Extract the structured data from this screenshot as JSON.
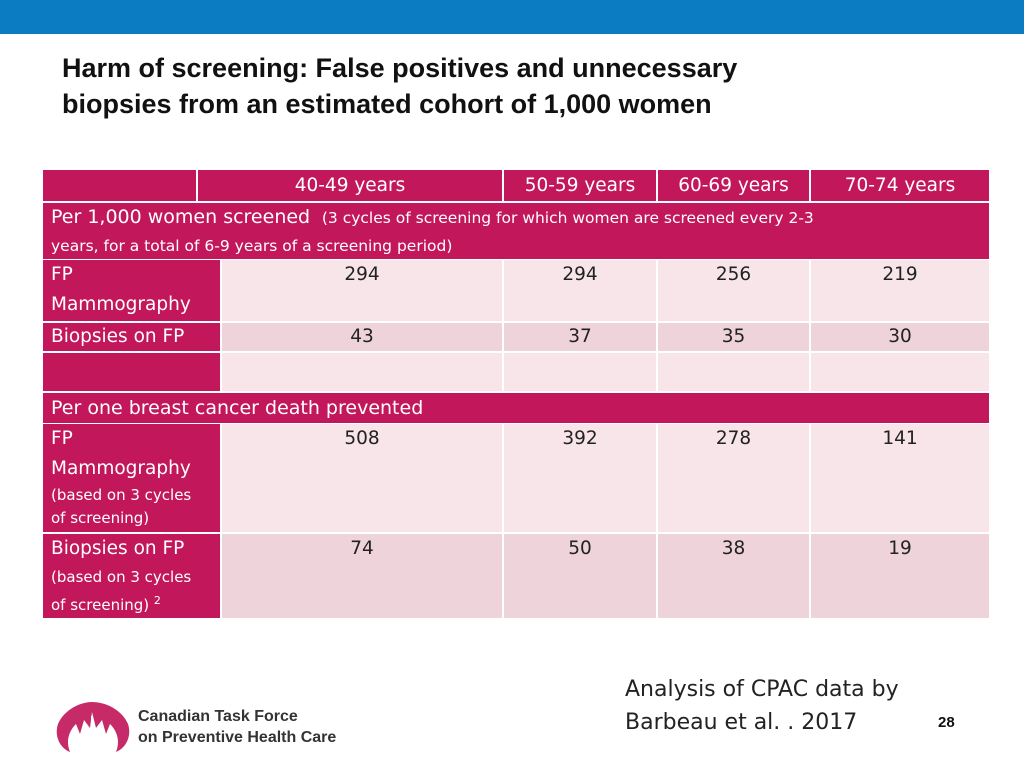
{
  "title": {
    "line1": "Harm of screening: False positives and unnecessary",
    "line2": "biopsies from an estimated cohort of 1,000 women"
  },
  "table": {
    "headers": [
      "",
      "40-49 years",
      "50-59 years",
      "60-69 years",
      "70-74 years"
    ],
    "section1": {
      "bold": "Per 1,000 women screened",
      "note_line1": "(3 cycles of screening for which women are screened every 2-3",
      "note_line2": "years, for a total of 6-9 years of a screening period)"
    },
    "section1_rows": [
      {
        "label_line1": "FP",
        "label_line2": "Mammography",
        "values": [
          "294",
          "294",
          "256",
          "219"
        ]
      },
      {
        "label_line1": "Biopsies on FP",
        "values": [
          "43",
          "37",
          "35",
          "30"
        ]
      }
    ],
    "section2": {
      "label": "Per one breast cancer death prevented"
    },
    "section2_rows": [
      {
        "label_line1": "FP",
        "label_line2": "Mammography",
        "note_line1": "(based on 3 cycles",
        "note_line2": "of screening)",
        "values": [
          "508",
          "392",
          "278",
          "141"
        ]
      },
      {
        "label_line1": "Biopsies on FP",
        "note_line1": "(based on 3 cycles",
        "note_line2": "of screening)",
        "note_sup": "2",
        "values": [
          "74",
          "50",
          "38",
          "19"
        ]
      }
    ]
  },
  "source": {
    "line1": "Analysis of CPAC data by",
    "line2": "Barbeau et al. . 2017"
  },
  "page_number": "28",
  "logo": {
    "line1": "Canadian Task Force",
    "line2": "on Preventive Health Care"
  },
  "colors": {
    "header_bar": "#0b7cc1",
    "magenta": "#c2185b",
    "row_light": "#f7e5ea",
    "row_dark": "#efd3da"
  }
}
